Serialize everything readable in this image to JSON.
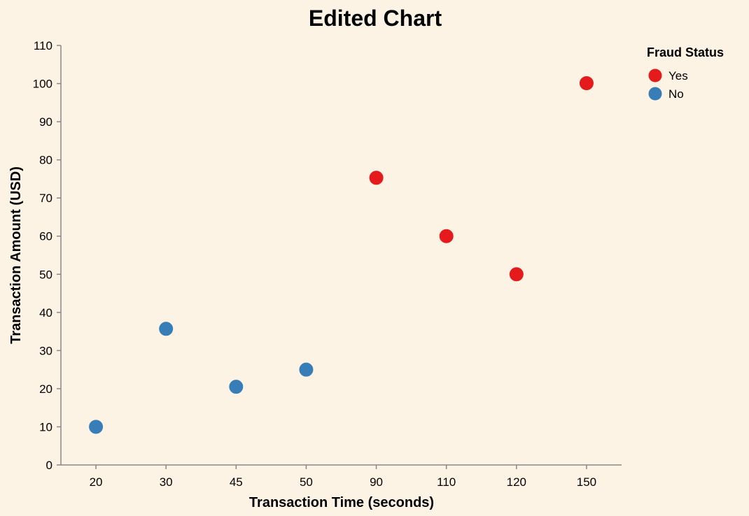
{
  "chart_data": {
    "type": "scatter",
    "title": "Edited Chart",
    "xlabel": "Transaction Time (seconds)",
    "ylabel": "Transaction Amount (USD)",
    "x_scale": "ordinal",
    "x_categories": [
      "20",
      "30",
      "45",
      "50",
      "90",
      "110",
      "120",
      "150"
    ],
    "ylim": [
      0,
      110
    ],
    "y_ticks": [
      0,
      10,
      20,
      30,
      40,
      50,
      60,
      70,
      80,
      90,
      100,
      110
    ],
    "grid": false,
    "legend": {
      "title": "Fraud Status",
      "position": "top-right",
      "items": [
        {
          "label": "Yes",
          "color": "#e41a1c"
        },
        {
          "label": "No",
          "color": "#377eb8"
        }
      ]
    },
    "points": [
      {
        "x": "20",
        "y": 10,
        "fraud": "No"
      },
      {
        "x": "30",
        "y": 35.7,
        "fraud": "No"
      },
      {
        "x": "45",
        "y": 20.5,
        "fraud": "No"
      },
      {
        "x": "50",
        "y": 25,
        "fraud": "No"
      },
      {
        "x": "90",
        "y": 75.3,
        "fraud": "Yes"
      },
      {
        "x": "110",
        "y": 60,
        "fraud": "Yes"
      },
      {
        "x": "120",
        "y": 50,
        "fraud": "Yes"
      },
      {
        "x": "150",
        "y": 100.1,
        "fraud": "Yes"
      }
    ]
  }
}
